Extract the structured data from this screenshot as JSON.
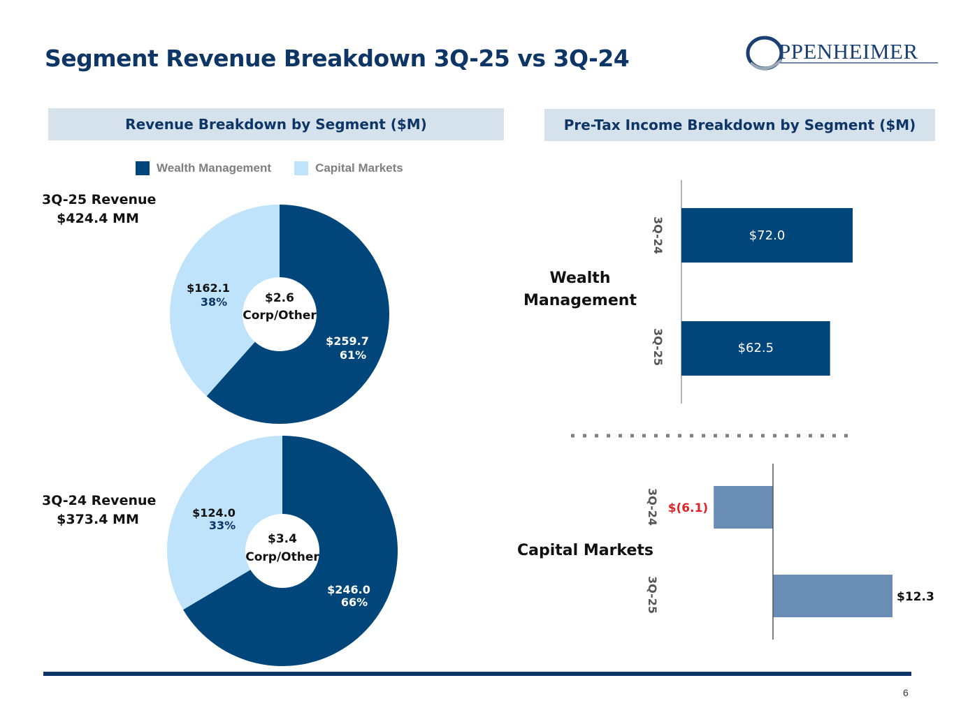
{
  "page": {
    "title": "Segment Revenue Breakdown 3Q-25 vs 3Q-24",
    "logo_text": "PPENHEIMER",
    "page_number": "6"
  },
  "colors": {
    "wealth_management": "#00467a",
    "capital_markets": "#bee3fb",
    "bar_wm": "#00467a",
    "bar_cm": "#6a8db5",
    "negative_label": "#e0242a",
    "header_bg": "#d5e2ec",
    "title": "#0d3566"
  },
  "revenue_panel": {
    "header": "Revenue Breakdown by Segment ($M)",
    "legend": [
      "Wealth Management",
      "Capital Markets"
    ]
  },
  "income_panel": {
    "header": "Pre-Tax Income Breakdown by Segment ($M)",
    "wealth_label": "Wealth Management",
    "capital_label": "Capital Markets"
  },
  "donut_3q25": {
    "revenue_title": "3Q-25 Revenue",
    "revenue_total": "$424.4 MM"
  },
  "donut_3q24": {
    "revenue_title": "3Q-24 Revenue",
    "revenue_total": "$373.4 MM"
  },
  "chart_data": [
    {
      "type": "pie",
      "title": "3Q-25 Revenue $424.4 MM",
      "categories": [
        "Wealth Management",
        "Capital Markets"
      ],
      "values": [
        259.7,
        162.1
      ],
      "value_labels": [
        "$259.7",
        "$162.1"
      ],
      "percent_labels": [
        "61%",
        "38%"
      ],
      "center_value": "$2.6",
      "center_label": "Corp/Other"
    },
    {
      "type": "pie",
      "title": "3Q-24 Revenue $373.4 MM",
      "categories": [
        "Wealth Management",
        "Capital Markets"
      ],
      "values": [
        246.0,
        124.0
      ],
      "value_labels": [
        "$246.0",
        "$124.0"
      ],
      "percent_labels": [
        "66%",
        "33%"
      ],
      "center_value": "$3.4",
      "center_label": "Corp/Other"
    },
    {
      "type": "bar",
      "orientation": "horizontal",
      "title": "Wealth Management",
      "categories": [
        "3Q-24",
        "3Q-25"
      ],
      "values": [
        72.0,
        62.5
      ],
      "value_labels": [
        "$72.0",
        "$62.5"
      ]
    },
    {
      "type": "bar",
      "orientation": "horizontal",
      "title": "Capital Markets",
      "categories": [
        "3Q-24",
        "3Q-25"
      ],
      "values": [
        -6.1,
        12.3
      ],
      "value_labels": [
        "$(6.1)",
        "$12.3"
      ]
    }
  ]
}
